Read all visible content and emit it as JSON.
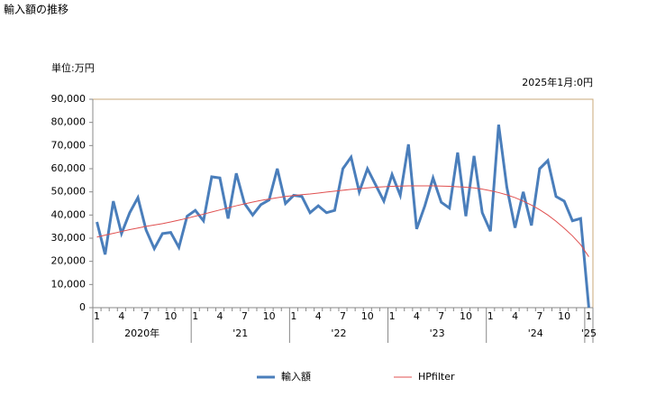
{
  "chart_data": {
    "type": "line",
    "title": "輸入額の推移",
    "unit_note": "単位:万円",
    "annotation": "2025年1月:0円",
    "categories": [
      "1",
      null,
      null,
      "4",
      null,
      null,
      "7",
      null,
      null,
      "10",
      null,
      null,
      "1",
      null,
      null,
      "4",
      null,
      null,
      "7",
      null,
      null,
      "10",
      null,
      null,
      "1",
      null,
      null,
      "4",
      null,
      null,
      "7",
      null,
      null,
      "10",
      null,
      null,
      "1",
      null,
      null,
      "4",
      null,
      null,
      "7",
      null,
      null,
      "10",
      null,
      null,
      "1",
      null,
      null,
      "4",
      null,
      null,
      "7",
      null,
      null,
      "10",
      null,
      null,
      "1"
    ],
    "year_labels": [
      "2020年",
      "'21",
      "'22",
      "'23",
      "'24",
      "'25"
    ],
    "series": [
      {
        "name": "輸入額",
        "color": "#4a7ebb",
        "values": [
          37000,
          23000,
          46000,
          32000,
          41000,
          47500,
          33500,
          25500,
          32000,
          32500,
          26000,
          39500,
          42000,
          37500,
          56500,
          56000,
          38500,
          58000,
          45000,
          40000,
          44500,
          46500,
          60000,
          45000,
          48500,
          48000,
          41000,
          44000,
          41000,
          42000,
          60000,
          65000,
          50000,
          60000,
          53000,
          46000,
          57500,
          48500,
          70500,
          34000,
          44000,
          56000,
          45500,
          43000,
          67000,
          39500,
          65500,
          41000,
          33000,
          79000,
          52000,
          34500,
          50000,
          35500,
          60000,
          63500,
          48000,
          46000,
          37500,
          38500,
          0
        ]
      },
      {
        "name": "HPfilter",
        "color": "#e05050",
        "values": [
          30500,
          31300,
          32100,
          32900,
          33700,
          34400,
          35100,
          35700,
          36300,
          37000,
          37800,
          38600,
          39500,
          40400,
          41300,
          42200,
          43100,
          44000,
          44800,
          45600,
          46300,
          46900,
          47500,
          48000,
          48400,
          48800,
          49100,
          49500,
          49900,
          50300,
          50700,
          51100,
          51400,
          51700,
          52000,
          52200,
          52400,
          52500,
          52600,
          52600,
          52600,
          52600,
          52500,
          52400,
          52200,
          52000,
          51700,
          51200,
          50500,
          49700,
          48700,
          47500,
          46000,
          44300,
          42300,
          40000,
          37300,
          34300,
          31000,
          27200,
          22000
        ]
      }
    ],
    "ylim": [
      0,
      90000
    ],
    "yticks": [
      0,
      {
        "value": 10000,
        "label": "10,000"
      },
      {
        "value": 20000,
        "label": "20,000"
      },
      {
        "value": 30000,
        "label": "30,000"
      },
      {
        "value": 40000,
        "label": "40,000"
      },
      {
        "value": 50000,
        "label": "50,000"
      },
      {
        "value": 60000,
        "label": "60,000"
      },
      {
        "value": 70000,
        "label": "70,000"
      },
      {
        "value": 80000,
        "label": "80,000"
      },
      {
        "value": 90000,
        "label": "90,000"
      }
    ]
  }
}
